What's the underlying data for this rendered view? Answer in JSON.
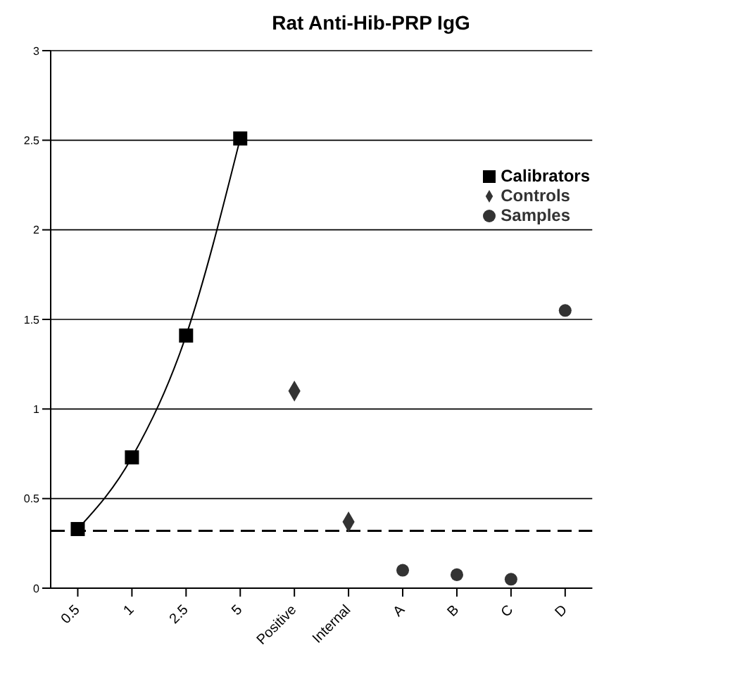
{
  "chart_data": {
    "type": "line",
    "title": "Rat Anti-Hib-PRP IgG",
    "categories": [
      "0.5",
      "1",
      "2.5",
      "5",
      "Positive",
      "Internal",
      "A",
      "B",
      "C",
      "D"
    ],
    "series": [
      {
        "name": "Calibrators",
        "color": "#000000",
        "marker": "square",
        "values": [
          0.33,
          0.73,
          1.41,
          2.51,
          null,
          null,
          null,
          null,
          null,
          null
        ]
      },
      {
        "name": "Controls",
        "type": "scatter",
        "color": "#333333",
        "marker": "diamond",
        "values": [
          null,
          null,
          null,
          null,
          1.1,
          0.37,
          null,
          null,
          null,
          null
        ]
      },
      {
        "name": "Samples",
        "type": "scatter",
        "color": "#333333",
        "marker": "circle",
        "values": [
          null,
          null,
          null,
          null,
          null,
          null,
          0.1,
          0.075,
          0.05,
          1.55
        ]
      }
    ],
    "ylim": [
      0,
      3
    ],
    "yticks": [
      0,
      0.5,
      1,
      1.5,
      2,
      2.5,
      3
    ],
    "grid": "y",
    "legend": "top right",
    "ref_lines": [
      {
        "axis": "y",
        "value": 0.32,
        "line_style": "dashed",
        "color": "#000000"
      }
    ]
  }
}
